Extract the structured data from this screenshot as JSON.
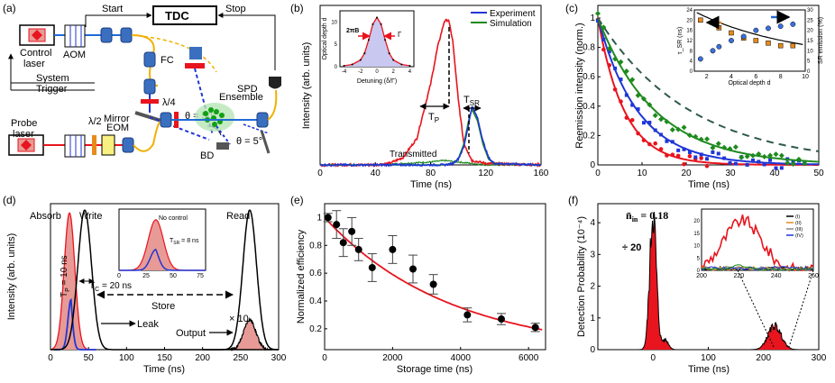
{
  "panel_labels": [
    "(a)",
    "(b)",
    "(c)",
    "(d)",
    "(e)",
    "(f)"
  ],
  "colors": {
    "red": "#e8141e",
    "blue": "#1f36d6",
    "green": "#1e8a1e",
    "darkgreen": "#2f5a4a",
    "orange": "#e88a1a",
    "shade": "#e89a96"
  },
  "panel_a": {
    "labels": {
      "start": "Start",
      "tdc": "TDC",
      "stop": "Stop",
      "control_laser_1": "Control",
      "control_laser_2": "laser",
      "aom": "AOM",
      "fc": "FC",
      "system_1": "System",
      "system_2": "Trigger",
      "spd": "SPD",
      "quarter": "λ/4",
      "mirror": "Mirror",
      "angle_50": "θ = 50°",
      "ensemble": "Ensemble",
      "probe_laser_1": "Probe",
      "probe_laser_2": "laser",
      "half": "λ/2",
      "eom": "EOM",
      "angle_5": "θ = 5°",
      "bd": "BD"
    }
  },
  "chart_data": [
    {
      "id": "b",
      "type": "line",
      "xlabel": "Time (ns)",
      "ylabel": "Intensity (arb. units)",
      "xlim": [
        0,
        160
      ],
      "xticks": [
        0,
        40,
        80,
        120,
        160
      ],
      "legend": [
        "Experiment",
        "Simulation"
      ],
      "annotations": {
        "tp": "T",
        "tp_sub": "P",
        "tsr": "T",
        "tsr_sub": "SR",
        "transmitted": "Transmitted"
      },
      "series": [
        {
          "name": "Probe (red)",
          "x": [
            0,
            40,
            50,
            60,
            70,
            80,
            85,
            90,
            93,
            96,
            100,
            104,
            110,
            120,
            160
          ],
          "y": [
            0.0,
            0.0,
            0.01,
            0.05,
            0.18,
            0.55,
            0.8,
            0.98,
            0.99,
            0.85,
            0.45,
            0.15,
            0.03,
            0.01,
            0.0
          ]
        },
        {
          "name": "Experiment",
          "x": [
            0,
            90,
            96,
            100,
            104,
            108,
            110,
            114,
            118,
            122,
            126,
            160
          ],
          "y": [
            0,
            0,
            0.01,
            0.04,
            0.12,
            0.3,
            0.4,
            0.32,
            0.16,
            0.05,
            0.01,
            0
          ]
        },
        {
          "name": "Simulation",
          "x": [
            0,
            90,
            96,
            100,
            104,
            108,
            110,
            114,
            118,
            122,
            126,
            160
          ],
          "y": [
            0,
            0,
            0.01,
            0.04,
            0.14,
            0.32,
            0.38,
            0.3,
            0.14,
            0.04,
            0.01,
            0
          ]
        },
        {
          "name": "Transmitted",
          "x": [
            0,
            40,
            60,
            80,
            90,
            100,
            110,
            120,
            160
          ],
          "y": [
            0,
            0.0,
            0.01,
            0.02,
            0.03,
            0.02,
            0.01,
            0.0,
            0
          ]
        }
      ],
      "inset": {
        "xlabel": "Detuning (δ/Γ)",
        "ylabel": "Optical depth d",
        "xticks": [
          -4,
          -2,
          0,
          2,
          4
        ],
        "yticks": [
          0,
          5,
          10
        ],
        "label_2pib": "2πB",
        "label_gamma": "Γ",
        "x": [
          -4,
          -3,
          -2,
          -1.5,
          -1,
          -0.5,
          0,
          0.5,
          1,
          1.5,
          2,
          3,
          4
        ],
        "y": [
          0.2,
          0.5,
          1.5,
          3,
          6,
          9.5,
          11,
          9.5,
          6,
          3,
          1.5,
          0.5,
          0.2
        ]
      }
    },
    {
      "id": "c",
      "type": "scatter+line",
      "xlabel": "Time (ns)",
      "ylabel": "Reemission intensity (norm.)",
      "xlim": [
        0,
        50
      ],
      "ylim": [
        0,
        1
      ],
      "xticks": [
        0,
        10,
        20,
        30,
        40,
        50
      ],
      "yticks": [
        0,
        0.2,
        0.4,
        0.6,
        0.8,
        1
      ],
      "series": [
        {
          "name": "red",
          "tau": 6
        },
        {
          "name": "blue",
          "tau": 9
        },
        {
          "name": "green",
          "tau": 13
        },
        {
          "name": "dashed",
          "tau": 21
        }
      ],
      "inset": {
        "xlabel": "Optical depth d",
        "ylabel_left": "τ_SR (ns)",
        "ylabel_right": "SR emission (%)",
        "xticks": [
          2,
          4,
          6,
          8,
          10
        ],
        "yticks_left": [
          0,
          4,
          8,
          12,
          16,
          20,
          24
        ],
        "yticks_right": [
          0,
          5,
          10,
          15,
          20,
          25,
          30
        ],
        "tau_x": [
          1.5,
          2.5,
          3,
          4,
          5,
          6,
          7,
          8,
          9
        ],
        "tau_y": [
          20,
          19,
          17,
          15,
          13,
          12,
          11,
          10,
          10
        ],
        "sr_x": [
          1.5,
          2.5,
          3,
          4,
          5,
          6,
          7,
          8,
          9
        ],
        "sr_y": [
          6,
          10,
          12,
          15,
          17,
          20,
          21,
          22,
          23
        ]
      }
    },
    {
      "id": "d",
      "type": "line",
      "xlabel": "Time (ns)",
      "ylabel": "Intensity (arb. units)",
      "xlim": [
        0,
        300
      ],
      "xticks": [
        0,
        50,
        100,
        150,
        200,
        250,
        300
      ],
      "labels": {
        "absorb": "Absorb",
        "write": "Write",
        "read": "Read",
        "tp": "T",
        "tp_sub": "P",
        "tp_eq": " = 10 ns",
        "tc": "T",
        "tc_sub": "C",
        "tc_eq": " = 20 ns",
        "store": "Store",
        "leak": "Leak",
        "output": "Output",
        "times10": "× 10"
      },
      "inset": {
        "title": "No control",
        "xticks": [
          0,
          25,
          50,
          75
        ],
        "tsr": "T",
        "tsr_sub": "SR",
        "tsr_eq": " = 8 ns"
      }
    },
    {
      "id": "e",
      "type": "scatter",
      "xlabel": "Storage time (ns)",
      "ylabel": "Normalized efficiency",
      "xlim": [
        0,
        6500
      ],
      "ylim": [
        0.05,
        1.1
      ],
      "xticks": [
        0,
        2000,
        4000,
        6000
      ],
      "yticks": [
        0.2,
        0.4,
        0.6,
        0.8,
        1
      ],
      "x": [
        100,
        350,
        550,
        800,
        1000,
        1400,
        2000,
        2600,
        3200,
        4200,
        5200,
        6200
      ],
      "y": [
        1.0,
        0.95,
        0.82,
        0.9,
        0.77,
        0.64,
        0.77,
        0.63,
        0.52,
        0.3,
        0.27,
        0.21
      ],
      "err": [
        0.03,
        0.1,
        0.1,
        0.1,
        0.08,
        0.1,
        0.1,
        0.1,
        0.07,
        0.05,
        0.04,
        0.03
      ],
      "fit_tau": 3700
    },
    {
      "id": "f",
      "type": "line",
      "xlabel": "Time (ns)",
      "ylabel": "Detection Probability (10⁻⁴)",
      "xlim": [
        -100,
        300
      ],
      "xticks": [
        0,
        100,
        200,
        300
      ],
      "yticks": [
        0,
        1,
        2,
        3,
        4
      ],
      "labels": {
        "nin": "n̄",
        "nin_sub": "in",
        "nin_eq": " = 0.18",
        "div20": "÷ 20"
      },
      "inset": {
        "xticks": [
          200,
          220,
          240,
          260
        ],
        "yticks": [
          0,
          5,
          10,
          15,
          20
        ],
        "legend": [
          "(I)",
          "(II)",
          "(III)",
          "(IV)"
        ]
      }
    }
  ]
}
